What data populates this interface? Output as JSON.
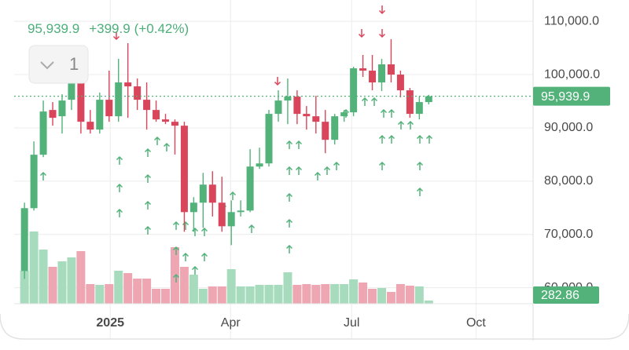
{
  "chart_data": {
    "type": "candlestick",
    "header": {
      "price": "95,939.9",
      "change": "+399.9",
      "change_pct": "(+0.42%)"
    },
    "interval_box": "1",
    "categories": [
      null,
      null,
      null,
      null,
      null,
      null,
      null,
      null,
      null,
      null,
      null,
      null,
      null,
      null,
      null,
      null,
      null,
      null,
      null,
      null,
      null,
      null,
      null,
      null,
      null,
      null,
      null,
      null,
      null,
      null,
      null,
      null,
      null,
      null,
      null,
      null,
      null,
      null,
      null,
      null,
      null,
      null,
      null,
      null
    ],
    "open": [
      63130,
      74930,
      84960,
      93360,
      92180,
      95280,
      98820,
      91150,
      89680,
      95280,
      92180,
      98530,
      97790,
      95280,
      93360,
      91590,
      91150,
      90410,
      74190,
      75960,
      79350,
      75960,
      71530,
      74190,
      74480,
      82740,
      83330,
      92630,
      95130,
      95870,
      92630,
      92180,
      91150,
      87760,
      92180,
      92920,
      101180,
      100740,
      98530,
      101920,
      100000,
      97050,
      92630,
      94840
    ],
    "high": [
      75960,
      87460,
      95130,
      94840,
      96310,
      100000,
      101030,
      93360,
      96610,
      100740,
      102950,
      105900,
      99260,
      98530,
      95130,
      92630,
      91590,
      91150,
      77000,
      81560,
      81860,
      80830,
      76400,
      76400,
      85990,
      86280,
      93360,
      97050,
      99260,
      97050,
      94100,
      96020,
      93360,
      92630,
      93360,
      101470,
      103690,
      103690,
      102950,
      106640,
      100740,
      97490,
      95870,
      96200
    ],
    "low": [
      61650,
      74480,
      84510,
      90410,
      88940,
      93360,
      88940,
      88940,
      88940,
      91150,
      91150,
      91890,
      93360,
      89680,
      91150,
      90710,
      85000,
      70500,
      70500,
      71240,
      73370,
      70500,
      67990,
      73370,
      74190,
      82300,
      82740,
      91150,
      90710,
      90710,
      89680,
      88940,
      85250,
      86870,
      91150,
      92180,
      99560,
      97050,
      96900,
      98530,
      95720,
      91890,
      91590,
      94400
    ],
    "close": [
      74930,
      84960,
      93070,
      91890,
      95130,
      98820,
      91150,
      89680,
      95280,
      92180,
      98530,
      97790,
      95280,
      93360,
      91590,
      91150,
      90410,
      74190,
      75960,
      79350,
      75960,
      71530,
      74190,
      74480,
      82740,
      83330,
      92630,
      95130,
      95870,
      92630,
      92180,
      91150,
      87760,
      92180,
      92920,
      101180,
      100740,
      98530,
      101920,
      100000,
      97050,
      92630,
      94840,
      95939.9
    ],
    "volume": [
      2940,
      6440,
      4830,
      3290,
      3780,
      4130,
      4690,
      1750,
      1680,
      1750,
      2940,
      2730,
      2240,
      2240,
      1330,
      1330,
      5040,
      3290,
      2590,
      1330,
      1540,
      1540,
      3080,
      1540,
      1540,
      1680,
      1680,
      1680,
      2800,
      1680,
      1750,
      1680,
      1750,
      1750,
      1750,
      2170,
      1890,
      1330,
      1400,
      1050,
      1750,
      1610,
      1540,
      282.86
    ],
    "last_price": {
      "value": 95939.9,
      "label": "95,939.9"
    },
    "up_color": "#52b27a",
    "down_color": "#d9465c",
    "up_volume_color": "#a6dcbd",
    "down_volume_color": "#eea6b3",
    "xlim": [
      -1.1,
      54.1
    ],
    "xticks": [
      {
        "value": 9.12,
        "label": "2025"
      },
      {
        "value": 21.92,
        "label": "Apr"
      },
      {
        "value": 34.8,
        "label": "Jul"
      },
      {
        "value": 48.03,
        "label": "Oct"
      }
    ],
    "ylim": [
      57000,
      114000
    ],
    "yticks": [
      {
        "value": 60000,
        "label": "60,000.0"
      },
      {
        "value": 70000,
        "label": "70,000.0"
      },
      {
        "value": 80000,
        "label": "80,000.0"
      },
      {
        "value": 90000,
        "label": "90,000.0"
      },
      {
        "value": 100000,
        "label": "100,000.0"
      },
      {
        "value": 110000,
        "label": "110,000.0"
      }
    ],
    "volume_ylim": [
      0,
      27090
    ],
    "grid": true
  }
}
